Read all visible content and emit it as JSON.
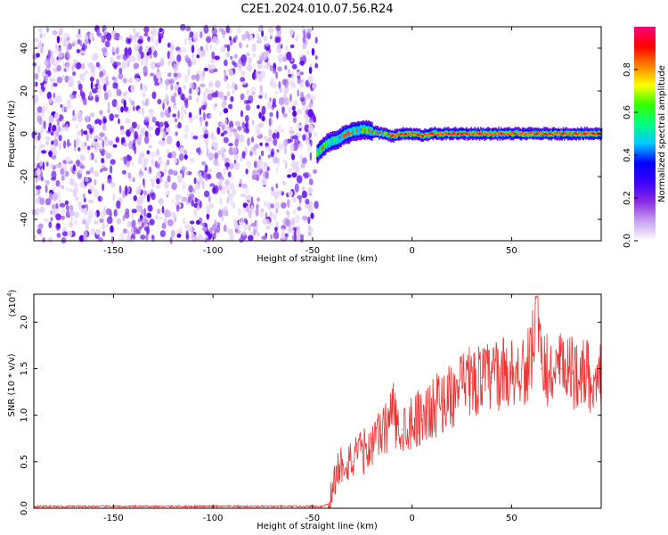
{
  "figure_title": "C2E1.2024.010.07.56.R24",
  "chart_data": [
    {
      "type": "heatmap",
      "xlabel": "Height of straight line (km)",
      "ylabel": "Frequency (Hz)",
      "xlim": [
        -190,
        95
      ],
      "ylim": [
        -50,
        50
      ],
      "x_ticks": [
        -150,
        -100,
        -50,
        0,
        50
      ],
      "y_ticks": [
        -40,
        -20,
        0,
        20,
        40
      ],
      "colorbar": {
        "label": "Normalized spectral amplitude",
        "range": [
          0.0,
          1.0
        ],
        "ticks": [
          0.0,
          0.2,
          0.4,
          0.6,
          0.8
        ],
        "colormap": [
          "#ffffff",
          "#c8a2f0",
          "#8a2be2",
          "#3b00ff",
          "#0000ff",
          "#00c8ff",
          "#00ff80",
          "#33ff00",
          "#ffff00",
          "#ff8000",
          "#ff0000",
          "#ff0080"
        ]
      },
      "noise_region_x": [
        -190,
        -48
      ],
      "signal_trace": {
        "x": [
          -48,
          -45,
          -42,
          -38,
          -35,
          -30,
          -25,
          -20,
          -15,
          -10,
          -5,
          0,
          5,
          10,
          20,
          40,
          60,
          80,
          95
        ],
        "frequency": [
          -9,
          -6,
          -4,
          -3,
          -1,
          1,
          2,
          1,
          0,
          -1,
          0,
          0,
          -1,
          0,
          0,
          0,
          0,
          0,
          0
        ]
      }
    },
    {
      "type": "line",
      "xlabel": "Height of straight line (km)",
      "ylabel": "SNR (10 * v/v)",
      "y_multiplier": "(x10",
      "y_multiplier_exp": "4",
      "y_multiplier_close": ")",
      "xlim": [
        -190,
        95
      ],
      "ylim": [
        0,
        2.3
      ],
      "x_ticks": [
        -150,
        -100,
        -50,
        0,
        50
      ],
      "y_ticks": [
        0.0,
        0.5,
        1.0,
        1.5,
        2.0
      ],
      "color": "#ee3333",
      "series": [
        {
          "x": [
            -190,
            -150,
            -100,
            -60,
            -45,
            -42,
            -40,
            -38,
            -35,
            -30,
            -25,
            -20,
            -15,
            -12,
            -10,
            -8,
            -5,
            0,
            5,
            10,
            15,
            20,
            25,
            30,
            35,
            40,
            45,
            50,
            55,
            60,
            62,
            65,
            70,
            75,
            80,
            85,
            90,
            95
          ],
          "values": [
            0.02,
            0.02,
            0.02,
            0.02,
            0.02,
            0.05,
            0.2,
            0.4,
            0.5,
            0.5,
            0.6,
            0.7,
            0.8,
            0.9,
            1.1,
            0.9,
            0.85,
            0.95,
            1.0,
            1.05,
            1.15,
            1.2,
            1.3,
            1.35,
            1.4,
            1.4,
            1.45,
            1.45,
            1.5,
            1.55,
            2.2,
            1.5,
            1.45,
            1.5,
            1.45,
            1.5,
            1.4,
            1.45
          ]
        }
      ]
    }
  ]
}
